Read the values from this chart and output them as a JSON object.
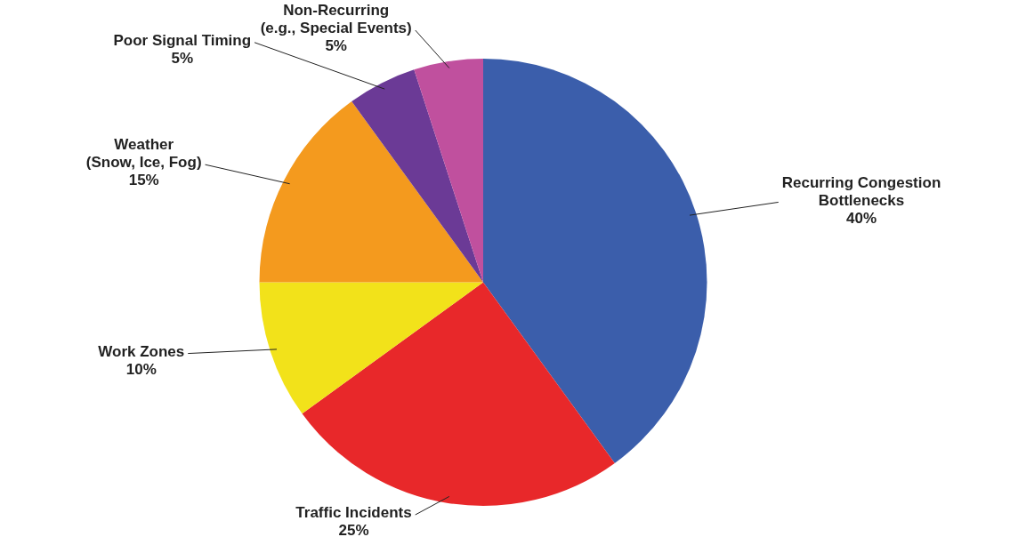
{
  "chart_data": {
    "type": "pie",
    "categories": [
      "Recurring Congestion\nBottlenecks",
      "Traffic Incidents",
      "Work Zones",
      "Weather\n(Snow, Ice, Fog)",
      "Poor Signal Timing",
      "Non-Recurring\n(e.g., Special Events)"
    ],
    "values": [
      40,
      25,
      10,
      15,
      5,
      5
    ],
    "value_labels": [
      "40%",
      "25%",
      "10%",
      "15%",
      "5%",
      "5%"
    ],
    "colors": [
      "#3b5eab",
      "#e8282a",
      "#f2e21a",
      "#f49a1e",
      "#6b3a96",
      "#c0509e"
    ],
    "legend": false
  }
}
